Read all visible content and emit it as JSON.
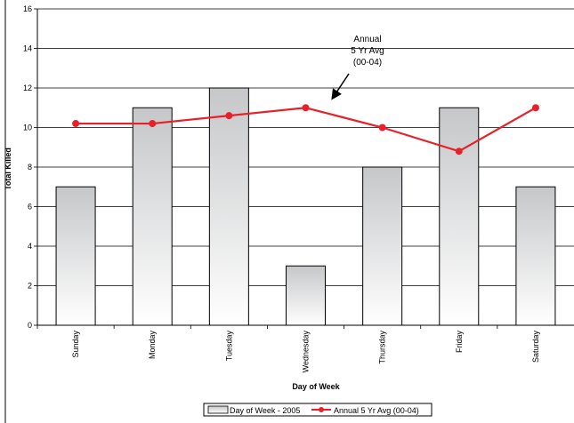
{
  "chart_data": {
    "type": "bar",
    "title": "",
    "categories": [
      "Sunday",
      "Monday",
      "Tuesday",
      "Wednesday",
      "Thursday",
      "Friday",
      "Saturday"
    ],
    "series": [
      {
        "name": "Day of Week - 2005",
        "type": "bar",
        "values": [
          7,
          11,
          12,
          3,
          8,
          11,
          7
        ]
      },
      {
        "name": "Annual 5 Yr Avg (00-04)",
        "type": "line",
        "values": [
          10.2,
          10.2,
          10.6,
          11.0,
          10.0,
          8.8,
          11.0
        ]
      }
    ],
    "xlabel": "Day of Week",
    "ylabel": "Total Killed",
    "ylim": [
      0,
      16
    ],
    "yticks": [
      0,
      2,
      4,
      6,
      8,
      10,
      12,
      14,
      16
    ],
    "grid": true,
    "legend_position": "bottom",
    "annotation": {
      "lines": [
        "Annual",
        "5 Yr Avg",
        "(00-04)"
      ],
      "points_to_category": "Wednesday"
    },
    "colors": {
      "line": "#e8202a",
      "bar_stroke": "#000000",
      "bar_top": "#c6c7c9",
      "bar_bottom": "#ffffff"
    }
  }
}
